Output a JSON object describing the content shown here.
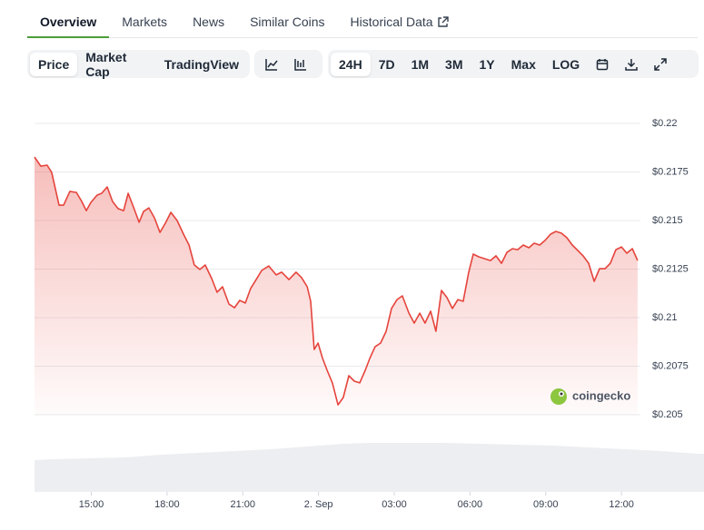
{
  "tabs": [
    "Overview",
    "Markets",
    "News",
    "Similar Coins",
    "Historical Data"
  ],
  "toolbar": {
    "views": [
      "Price",
      "Market Cap",
      "TradingView"
    ],
    "ranges": [
      "24H",
      "7D",
      "1M",
      "3M",
      "1Y",
      "Max",
      "LOG"
    ]
  },
  "watermark": "coingecko",
  "chart_data": {
    "type": "area",
    "color": "#e5443c",
    "grid": true,
    "xlim": [
      12.75,
      36.75
    ],
    "xticks": [
      {
        "value": 15,
        "label": "15:00"
      },
      {
        "value": 18,
        "label": "18:00"
      },
      {
        "value": 21,
        "label": "21:00"
      },
      {
        "value": 24,
        "label": "2. Sep"
      },
      {
        "value": 27,
        "label": "03:00"
      },
      {
        "value": 30,
        "label": "06:00"
      },
      {
        "value": 33,
        "label": "09:00"
      },
      {
        "value": 36,
        "label": "12:00"
      }
    ],
    "ylim": [
      0.205,
      0.22
    ],
    "yticks": [
      {
        "value": 0.22,
        "label": "$0.22"
      },
      {
        "value": 0.2175,
        "label": "$0.2175"
      },
      {
        "value": 0.215,
        "label": "$0.215"
      },
      {
        "value": 0.2125,
        "label": "$0.2125"
      },
      {
        "value": 0.21,
        "label": "$0.21"
      },
      {
        "value": 0.2075,
        "label": "$0.2075"
      },
      {
        "value": 0.205,
        "label": "$0.205"
      }
    ],
    "x": [
      12.75,
      13.0,
      13.25,
      13.43,
      13.72,
      13.9,
      14.15,
      14.41,
      14.62,
      14.8,
      14.98,
      15.23,
      15.41,
      15.63,
      15.84,
      16.06,
      16.28,
      16.46,
      16.67,
      16.89,
      17.07,
      17.28,
      17.5,
      17.72,
      17.93,
      18.15,
      18.4,
      18.65,
      18.87,
      19.08,
      19.3,
      19.51,
      19.77,
      19.98,
      20.2,
      20.45,
      20.67,
      20.88,
      21.1,
      21.31,
      21.53,
      21.75,
      22.03,
      22.32,
      22.54,
      22.83,
      23.11,
      23.33,
      23.55,
      23.69,
      23.83,
      23.98,
      24.16,
      24.34,
      24.55,
      24.77,
      24.98,
      25.2,
      25.42,
      25.63,
      25.85,
      26.03,
      26.24,
      26.46,
      26.68,
      26.89,
      27.11,
      27.32,
      27.58,
      27.79,
      28.01,
      28.22,
      28.44,
      28.65,
      28.87,
      29.09,
      29.3,
      29.52,
      29.73,
      29.95,
      30.13,
      30.35,
      30.56,
      30.81,
      31.03,
      31.25,
      31.46,
      31.68,
      31.89,
      32.11,
      32.33,
      32.54,
      32.76,
      32.97,
      33.19,
      33.4,
      33.62,
      33.84,
      34.05,
      34.27,
      34.48,
      34.7,
      34.92,
      35.13,
      35.35,
      35.56,
      35.78,
      36.0,
      36.21,
      36.43,
      36.64
    ],
    "values": [
      0.21827,
      0.2178,
      0.21785,
      0.21748,
      0.21579,
      0.21579,
      0.2165,
      0.21645,
      0.21598,
      0.21551,
      0.21593,
      0.21631,
      0.2164,
      0.21673,
      0.21598,
      0.21561,
      0.21551,
      0.2164,
      0.2157,
      0.21491,
      0.21547,
      0.21565,
      0.21514,
      0.21439,
      0.21486,
      0.21542,
      0.215,
      0.2143,
      0.21374,
      0.21271,
      0.21248,
      0.21271,
      0.21201,
      0.21131,
      0.21159,
      0.2107,
      0.21051,
      0.21089,
      0.21075,
      0.2115,
      0.21196,
      0.21243,
      0.21266,
      0.2122,
      0.21234,
      0.21196,
      0.21234,
      0.21206,
      0.21159,
      0.21084,
      0.20836,
      0.20869,
      0.2079,
      0.20729,
      0.20664,
      0.20551,
      0.20589,
      0.20701,
      0.20673,
      0.20664,
      0.20729,
      0.2079,
      0.2085,
      0.20869,
      0.2093,
      0.21047,
      0.21093,
      0.21112,
      0.21023,
      0.20972,
      0.21023,
      0.20972,
      0.21033,
      0.2093,
      0.2114,
      0.21103,
      0.21047,
      0.21093,
      0.21084,
      0.21234,
      0.21327,
      0.21313,
      0.21304,
      0.21294,
      0.21318,
      0.2128,
      0.21336,
      0.21355,
      0.2135,
      0.21374,
      0.2136,
      0.21383,
      0.21374,
      0.21397,
      0.2143,
      0.21444,
      0.21435,
      0.21411,
      0.21374,
      0.21346,
      0.21318,
      0.2128,
      0.21187,
      0.21252,
      0.21252,
      0.2128,
      0.2135,
      0.21364,
      0.21332,
      0.21355,
      0.21294
    ]
  }
}
